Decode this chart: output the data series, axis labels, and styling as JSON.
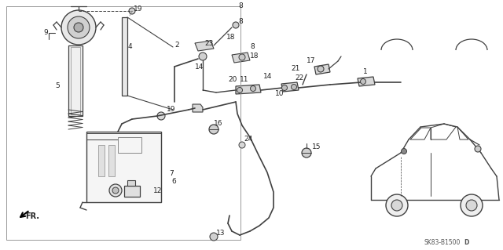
{
  "bg_color": "#ffffff",
  "line_color": "#404040",
  "text_color": "#222222",
  "diagram_code": "SK83-B1500D",
  "figsize": [
    6.4,
    3.19
  ],
  "dpi": 100
}
